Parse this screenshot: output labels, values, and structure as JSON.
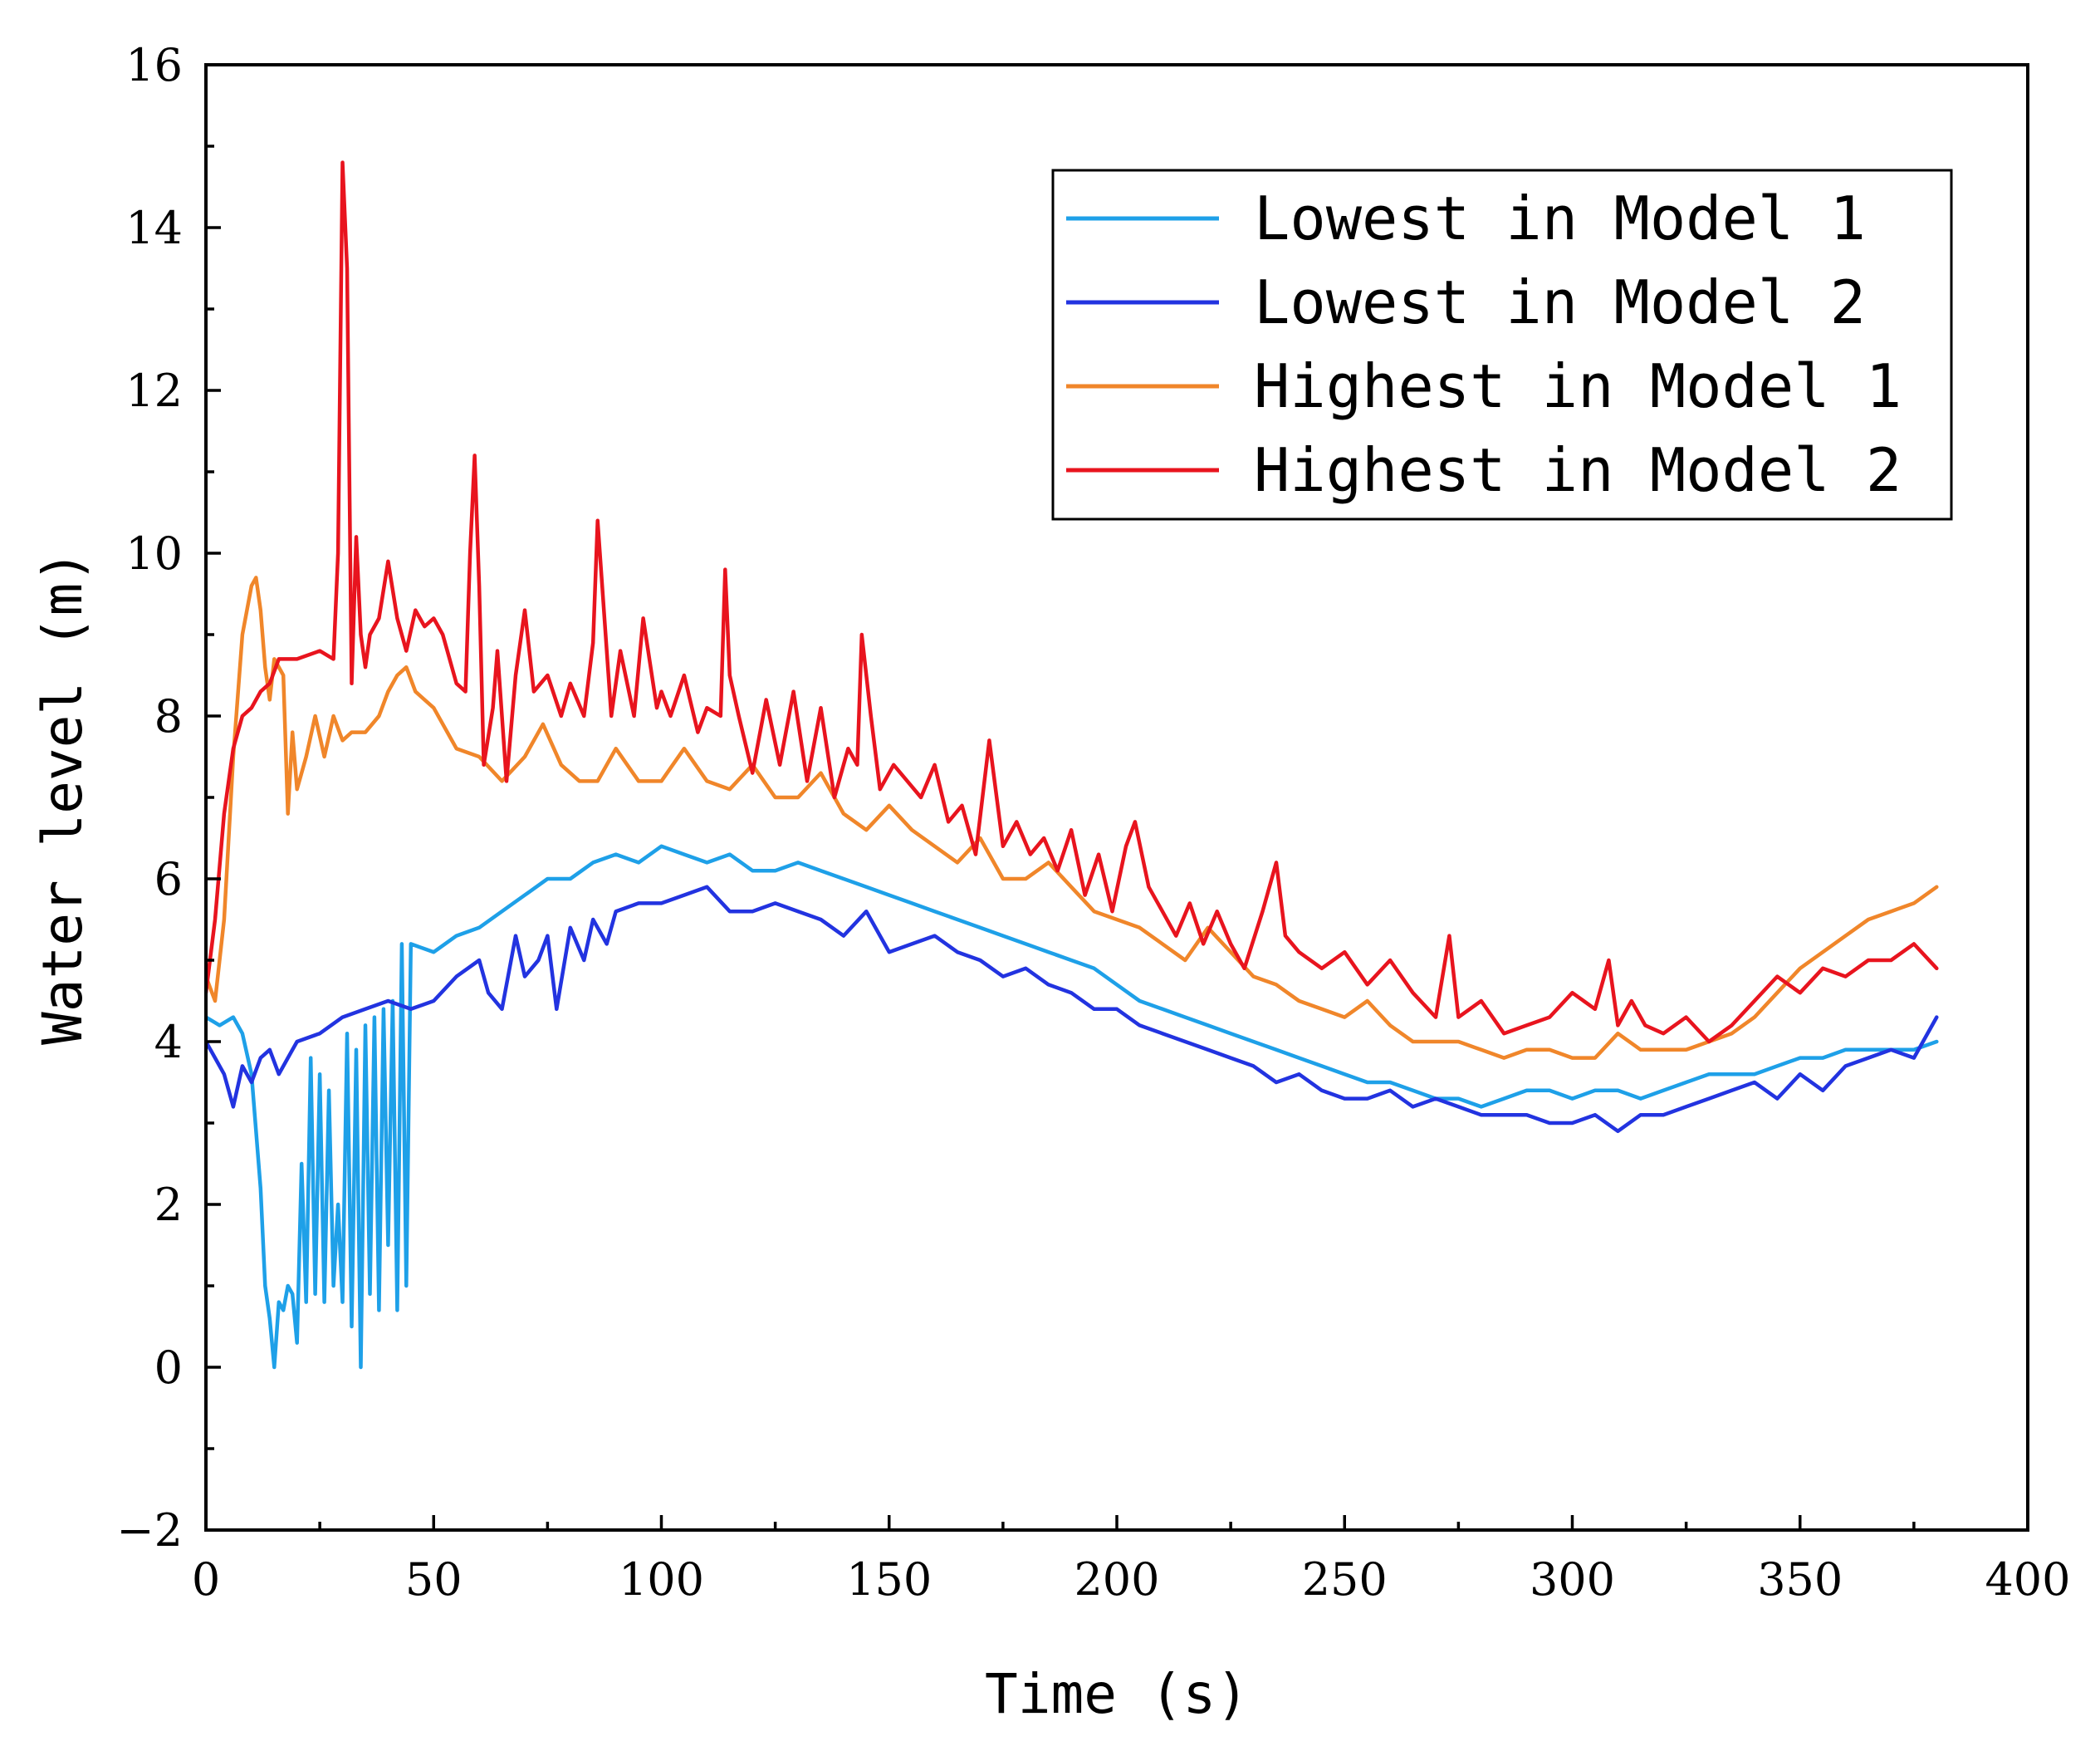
{
  "chart_data": {
    "type": "line",
    "title": "",
    "xlabel": "Time (s)",
    "ylabel": "Water level (m)",
    "xlim": [
      0,
      400
    ],
    "ylim": [
      -2,
      16
    ],
    "xticks": [
      0,
      50,
      100,
      150,
      200,
      250,
      300,
      350,
      400
    ],
    "xtick_labels": [
      "0",
      "50",
      "100",
      "150",
      "200",
      "250",
      "300",
      "350",
      "400"
    ],
    "yticks": [
      -2,
      0,
      2,
      4,
      6,
      8,
      10,
      12,
      14,
      16
    ],
    "ytick_labels": [
      "−2",
      "0",
      "2",
      "4",
      "6",
      "8",
      "10",
      "12",
      "14",
      "16"
    ],
    "grid": false,
    "legend_position": "top-right",
    "series": [
      {
        "name": "Lowest in Model 1",
        "color": "#1ea0e8",
        "x": [
          0,
          3,
          6,
          8,
          10,
          12,
          13,
          14,
          15,
          16,
          17,
          18,
          19,
          20,
          21,
          22,
          23,
          24,
          25,
          26,
          27,
          28,
          29,
          30,
          31,
          32,
          33,
          34,
          35,
          36,
          37,
          38,
          39,
          40,
          41,
          42,
          43,
          44,
          45,
          50,
          55,
          60,
          65,
          70,
          75,
          80,
          85,
          90,
          95,
          100,
          105,
          110,
          115,
          120,
          125,
          130,
          135,
          140,
          145,
          150,
          155,
          160,
          165,
          170,
          175,
          180,
          185,
          190,
          195,
          200,
          205,
          210,
          215,
          220,
          225,
          230,
          235,
          240,
          245,
          250,
          255,
          260,
          265,
          270,
          275,
          280,
          285,
          290,
          295,
          300,
          305,
          310,
          315,
          320,
          325,
          330,
          335,
          340,
          345,
          350,
          355,
          360,
          365,
          370,
          375,
          380
        ],
        "values": [
          4.3,
          4.2,
          4.3,
          4.1,
          3.6,
          2.2,
          1.0,
          0.6,
          0.0,
          0.8,
          0.7,
          1.0,
          0.9,
          0.3,
          2.5,
          0.8,
          3.8,
          0.9,
          3.6,
          0.8,
          3.4,
          1.0,
          2.0,
          0.8,
          4.1,
          0.5,
          3.9,
          0.0,
          4.2,
          0.9,
          4.3,
          0.7,
          4.4,
          1.5,
          4.5,
          0.7,
          5.2,
          1.0,
          5.2,
          5.1,
          5.3,
          5.4,
          5.6,
          5.8,
          6.0,
          6.0,
          6.2,
          6.3,
          6.2,
          6.4,
          6.3,
          6.2,
          6.3,
          6.1,
          6.1,
          6.2,
          6.1,
          6.0,
          5.9,
          5.8,
          5.7,
          5.6,
          5.5,
          5.4,
          5.3,
          5.2,
          5.1,
          5.0,
          4.9,
          4.7,
          4.5,
          4.4,
          4.3,
          4.2,
          4.1,
          4.0,
          3.9,
          3.8,
          3.7,
          3.6,
          3.5,
          3.5,
          3.4,
          3.3,
          3.3,
          3.2,
          3.3,
          3.4,
          3.4,
          3.3,
          3.4,
          3.4,
          3.3,
          3.4,
          3.5,
          3.6,
          3.6,
          3.6,
          3.7,
          3.8,
          3.8,
          3.9,
          3.9,
          3.9,
          3.9,
          4.0
        ]
      },
      {
        "name": "Lowest in Model 2",
        "color": "#2233e0",
        "x": [
          0,
          2,
          4,
          6,
          8,
          10,
          12,
          14,
          16,
          18,
          20,
          25,
          30,
          35,
          40,
          45,
          50,
          55,
          60,
          62,
          65,
          68,
          70,
          73,
          75,
          77,
          80,
          83,
          85,
          88,
          90,
          95,
          100,
          105,
          110,
          115,
          120,
          125,
          130,
          135,
          140,
          145,
          150,
          155,
          160,
          165,
          170,
          175,
          180,
          185,
          190,
          195,
          200,
          205,
          210,
          215,
          220,
          225,
          230,
          235,
          240,
          245,
          250,
          255,
          260,
          265,
          270,
          275,
          280,
          285,
          290,
          295,
          300,
          305,
          310,
          315,
          320,
          325,
          330,
          335,
          340,
          345,
          350,
          355,
          360,
          365,
          370,
          375,
          380
        ],
        "values": [
          4.0,
          3.8,
          3.6,
          3.2,
          3.7,
          3.5,
          3.8,
          3.9,
          3.6,
          3.8,
          4.0,
          4.1,
          4.3,
          4.4,
          4.5,
          4.4,
          4.5,
          4.8,
          5.0,
          4.6,
          4.4,
          5.3,
          4.8,
          5.0,
          5.3,
          4.4,
          5.4,
          5.0,
          5.5,
          5.2,
          5.6,
          5.7,
          5.7,
          5.8,
          5.9,
          5.6,
          5.6,
          5.7,
          5.6,
          5.5,
          5.3,
          5.6,
          5.1,
          5.2,
          5.3,
          5.1,
          5.0,
          4.8,
          4.9,
          4.7,
          4.6,
          4.4,
          4.4,
          4.2,
          4.1,
          4.0,
          3.9,
          3.8,
          3.7,
          3.5,
          3.6,
          3.4,
          3.3,
          3.3,
          3.4,
          3.2,
          3.3,
          3.2,
          3.1,
          3.1,
          3.1,
          3.0,
          3.0,
          3.1,
          2.9,
          3.1,
          3.1,
          3.2,
          3.3,
          3.4,
          3.5,
          3.3,
          3.6,
          3.4,
          3.7,
          3.8,
          3.9,
          3.8,
          4.3
        ]
      },
      {
        "name": "Highest in Model 1",
        "color": "#f0862a",
        "x": [
          0,
          2,
          4,
          6,
          8,
          10,
          11,
          12,
          13,
          14,
          15,
          16,
          17,
          18,
          19,
          20,
          22,
          24,
          26,
          28,
          30,
          32,
          35,
          38,
          40,
          42,
          44,
          46,
          50,
          55,
          60,
          65,
          70,
          74,
          78,
          82,
          86,
          90,
          95,
          100,
          105,
          110,
          115,
          120,
          125,
          130,
          135,
          140,
          145,
          150,
          155,
          160,
          165,
          170,
          175,
          180,
          185,
          190,
          195,
          200,
          205,
          210,
          215,
          220,
          225,
          230,
          235,
          240,
          245,
          250,
          255,
          260,
          265,
          270,
          275,
          280,
          285,
          290,
          295,
          300,
          305,
          310,
          315,
          320,
          325,
          330,
          335,
          340,
          345,
          350,
          355,
          360,
          365,
          370,
          375,
          380
        ],
        "values": [
          4.8,
          4.5,
          5.5,
          7.5,
          9.0,
          9.6,
          9.7,
          9.3,
          8.6,
          8.2,
          8.7,
          8.6,
          8.5,
          6.8,
          7.8,
          7.1,
          7.5,
          8.0,
          7.5,
          8.0,
          7.7,
          7.8,
          7.8,
          8.0,
          8.3,
          8.5,
          8.6,
          8.3,
          8.1,
          7.6,
          7.5,
          7.2,
          7.5,
          7.9,
          7.4,
          7.2,
          7.2,
          7.6,
          7.2,
          7.2,
          7.6,
          7.2,
          7.1,
          7.4,
          7.0,
          7.0,
          7.3,
          6.8,
          6.6,
          6.9,
          6.6,
          6.4,
          6.2,
          6.5,
          6.0,
          6.0,
          6.2,
          5.9,
          5.6,
          5.5,
          5.4,
          5.2,
          5.0,
          5.4,
          5.1,
          4.8,
          4.7,
          4.5,
          4.4,
          4.3,
          4.5,
          4.2,
          4.0,
          4.0,
          4.0,
          3.9,
          3.8,
          3.9,
          3.9,
          3.8,
          3.8,
          4.1,
          3.9,
          3.9,
          3.9,
          4.0,
          4.1,
          4.3,
          4.6,
          4.9,
          5.1,
          5.3,
          5.5,
          5.6,
          5.7,
          5.9
        ]
      },
      {
        "name": "Highest in Model 2",
        "color": "#e8141e",
        "x": [
          0,
          2,
          4,
          6,
          8,
          10,
          12,
          14,
          16,
          20,
          25,
          28,
          29,
          30,
          31,
          32,
          33,
          34,
          35,
          36,
          38,
          40,
          42,
          44,
          46,
          48,
          50,
          52,
          55,
          57,
          58,
          59,
          60,
          61,
          63,
          64,
          66,
          68,
          70,
          72,
          75,
          78,
          80,
          83,
          85,
          86,
          87,
          89,
          91,
          94,
          96,
          99,
          100,
          102,
          105,
          108,
          110,
          113,
          114,
          115,
          117,
          120,
          123,
          126,
          129,
          132,
          135,
          138,
          141,
          143,
          144,
          146,
          148,
          151,
          154,
          157,
          160,
          163,
          166,
          169,
          172,
          175,
          178,
          181,
          184,
          187,
          190,
          193,
          196,
          199,
          202,
          204,
          207,
          210,
          213,
          216,
          219,
          222,
          225,
          228,
          232,
          235,
          237,
          240,
          245,
          250,
          255,
          260,
          265,
          270,
          273,
          275,
          280,
          285,
          290,
          295,
          300,
          305,
          308,
          310,
          313,
          316,
          320,
          325,
          330,
          335,
          340,
          345,
          350,
          355,
          360,
          365,
          370,
          375,
          380
        ],
        "values": [
          4.6,
          5.5,
          6.8,
          7.6,
          8.0,
          8.1,
          8.3,
          8.4,
          8.7,
          8.7,
          8.8,
          8.7,
          10.0,
          14.8,
          13.5,
          8.4,
          10.2,
          9.0,
          8.6,
          9.0,
          9.2,
          9.9,
          9.2,
          8.8,
          9.3,
          9.1,
          9.2,
          9.0,
          8.4,
          8.3,
          10.0,
          11.2,
          9.6,
          7.4,
          8.1,
          8.8,
          7.2,
          8.5,
          9.3,
          8.3,
          8.5,
          8.0,
          8.4,
          8.0,
          8.9,
          10.4,
          9.6,
          8.0,
          8.8,
          8.0,
          9.2,
          8.1,
          8.3,
          8.0,
          8.5,
          7.8,
          8.1,
          8.0,
          9.8,
          8.5,
          8.0,
          7.3,
          8.2,
          7.4,
          8.3,
          7.2,
          8.1,
          7.0,
          7.6,
          7.4,
          9.0,
          8.0,
          7.1,
          7.4,
          7.2,
          7.0,
          7.4,
          6.7,
          6.9,
          6.3,
          7.7,
          6.4,
          6.7,
          6.3,
          6.5,
          6.1,
          6.6,
          5.8,
          6.3,
          5.6,
          6.4,
          6.7,
          5.9,
          5.6,
          5.3,
          5.7,
          5.2,
          5.6,
          5.2,
          4.9,
          5.6,
          6.2,
          5.3,
          5.1,
          4.9,
          5.1,
          4.7,
          5.0,
          4.6,
          4.3,
          5.3,
          4.3,
          4.5,
          4.1,
          4.2,
          4.3,
          4.6,
          4.4,
          5.0,
          4.2,
          4.5,
          4.2,
          4.1,
          4.3,
          4.0,
          4.2,
          4.5,
          4.8,
          4.6,
          4.9,
          4.8,
          5.0,
          5.0,
          5.2,
          4.9
        ]
      }
    ]
  }
}
